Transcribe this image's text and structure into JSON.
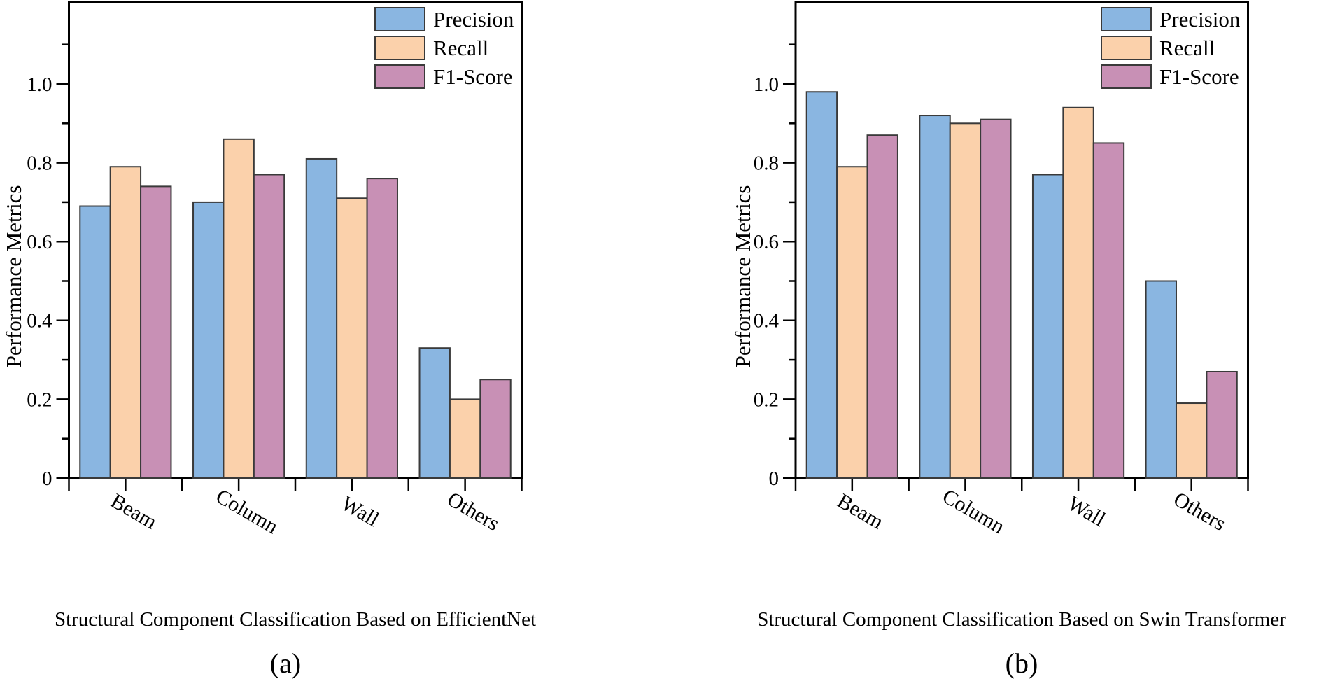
{
  "figure": {
    "background": "#ffffff",
    "axis_color": "#000000",
    "bar_edge_color": "#3a3a3a",
    "ylabel": "Performance Metrics",
    "legend": [
      "Precision",
      "Recall",
      "F1-Score"
    ]
  },
  "chart_data": [
    {
      "id": "a",
      "type": "bar",
      "title": "Structural Component Classification Based on EfficientNet",
      "sublabel": "(a)",
      "ylabel": "Performance Metrics",
      "categories": [
        "Beam",
        "Column",
        "Wall",
        "Others"
      ],
      "series": [
        {
          "name": "Precision",
          "color": "#8AB6E1",
          "values": [
            0.69,
            0.7,
            0.81,
            0.33
          ]
        },
        {
          "name": "Recall",
          "color": "#FBD1AB",
          "values": [
            0.79,
            0.86,
            0.71,
            0.2
          ]
        },
        {
          "name": "F1-Score",
          "color": "#C890B5",
          "values": [
            0.74,
            0.77,
            0.76,
            0.25
          ]
        }
      ],
      "ylim": [
        0,
        1.2
      ],
      "yticks": [
        0,
        0.2,
        0.4,
        0.6,
        0.8,
        1.0
      ],
      "ytick_labels": [
        "0",
        "0.2",
        "0.4",
        "0.6",
        "0.8",
        "1.0"
      ],
      "minor_yticks": [
        0.1,
        0.3,
        0.5,
        0.7,
        0.9,
        1.1
      ],
      "grid": false,
      "legend_position": "top-right-inside",
      "xtick_label_rotation_deg": 30
    },
    {
      "id": "b",
      "type": "bar",
      "title": "Structural Component Classification Based on Swin Transformer",
      "sublabel": "(b)",
      "ylabel": "Performance Metrics",
      "categories": [
        "Beam",
        "Column",
        "Wall",
        "Others"
      ],
      "series": [
        {
          "name": "Precision",
          "color": "#8AB6E1",
          "values": [
            0.98,
            0.92,
            0.77,
            0.5
          ]
        },
        {
          "name": "Recall",
          "color": "#FBD1AB",
          "values": [
            0.79,
            0.9,
            0.94,
            0.19
          ]
        },
        {
          "name": "F1-Score",
          "color": "#C890B5",
          "values": [
            0.87,
            0.91,
            0.85,
            0.27
          ]
        }
      ],
      "ylim": [
        0,
        1.2
      ],
      "yticks": [
        0,
        0.2,
        0.4,
        0.6,
        0.8,
        1.0
      ],
      "ytick_labels": [
        "0",
        "0.2",
        "0.4",
        "0.6",
        "0.8",
        "1.0"
      ],
      "minor_yticks": [
        0.1,
        0.3,
        0.5,
        0.7,
        0.9,
        1.1
      ],
      "grid": false,
      "legend_position": "top-right-inside",
      "xtick_label_rotation_deg": 30
    }
  ]
}
